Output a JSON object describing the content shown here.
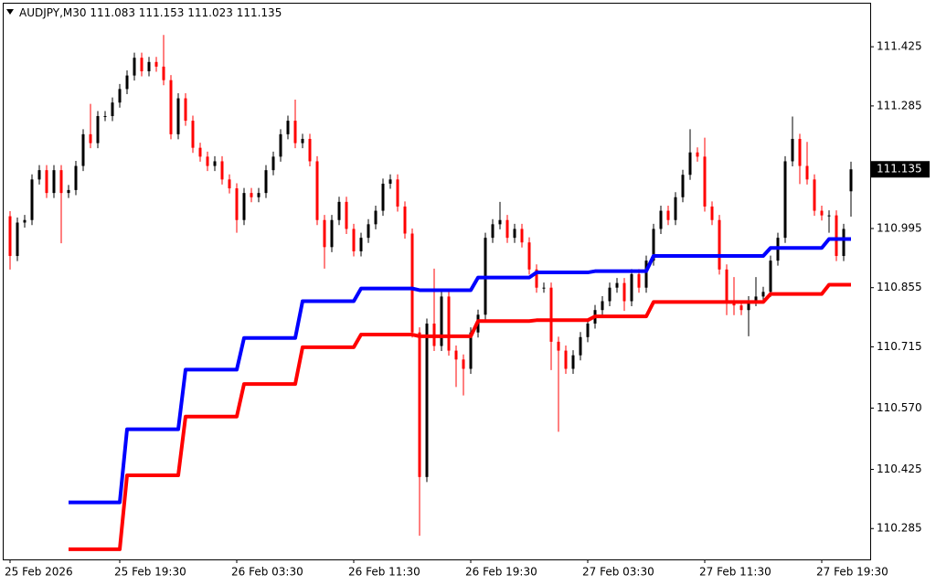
{
  "chart_data": {
    "type": "candlestick",
    "title": "AUDJPY,M30",
    "categories": [
      "25 Feb 2026",
      null,
      null,
      null,
      null,
      null,
      null,
      null,
      null,
      null,
      null,
      null,
      null,
      null,
      null,
      "25 Feb 19:30",
      null,
      null,
      null,
      null,
      null,
      null,
      null,
      null,
      null,
      null,
      null,
      null,
      null,
      null,
      null,
      "26 Feb 03:30",
      null,
      null,
      null,
      null,
      null,
      null,
      null,
      null,
      null,
      null,
      null,
      null,
      null,
      null,
      null,
      "26 Feb 11:30",
      null,
      null,
      null,
      null,
      null,
      null,
      null,
      null,
      null,
      null,
      null,
      null,
      null,
      null,
      null,
      "26 Feb 19:30",
      null,
      null,
      null,
      null,
      null,
      null,
      null,
      null,
      null,
      null,
      null,
      null,
      null,
      null,
      null,
      "27 Feb 03:30",
      null,
      null,
      null,
      null,
      null,
      null,
      null,
      null,
      null,
      null,
      null,
      null,
      null,
      null,
      null,
      "27 Feb 11:30",
      null,
      null,
      null,
      null,
      null,
      null,
      null,
      null,
      null,
      null,
      null,
      null,
      null,
      null,
      null,
      "27 Feb 19:30",
      null,
      null,
      null,
      null
    ],
    "open": [
      111.024,
      110.93,
      111.009,
      111.015,
      111.111,
      111.133,
      111.079,
      111.133,
      111.079,
      111.086,
      111.143,
      111.218,
      111.197,
      111.261,
      111.261,
      111.293,
      111.325,
      111.357,
      111.399,
      111.367,
      111.389,
      111.378,
      111.346,
      111.218,
      111.303,
      111.25,
      111.186,
      111.165,
      111.143,
      111.154,
      111.111,
      111.09,
      111.015,
      111.079,
      111.069,
      111.079,
      111.133,
      111.165,
      111.218,
      111.25,
      111.197,
      111.207,
      111.154,
      111.015,
      110.951,
      111.015,
      111.058,
      110.994,
      110.941,
      110.973,
      111.005,
      111.037,
      111.101,
      111.111,
      111.047,
      110.983,
      110.749,
      110.407,
      110.77,
      110.717,
      110.834,
      110.706,
      110.685,
      110.663,
      110.749,
      110.791,
      110.973,
      111.005,
      111.015,
      110.973,
      110.994,
      110.962,
      110.898,
      110.855,
      110.855,
      110.727,
      110.706,
      110.663,
      110.695,
      110.738,
      110.77,
      110.802,
      110.823,
      110.855,
      110.866,
      110.823,
      110.887,
      110.855,
      110.919,
      110.994,
      111.037,
      111.015,
      111.069,
      111.122,
      111.175,
      111.165,
      111.047,
      111.015,
      110.898,
      110.823,
      110.813,
      110.802,
      110.823,
      110.834,
      110.845,
      110.919,
      110.973,
      111.154,
      111.207,
      111.143,
      111.111,
      111.037,
      111.026,
      111.026,
      110.93,
      111.083
    ],
    "high": [
      111.036,
      111.021,
      111.027,
      111.123,
      111.145,
      111.145,
      111.145,
      111.145,
      111.098,
      111.155,
      111.23,
      111.29,
      111.273,
      111.273,
      111.305,
      111.337,
      111.369,
      111.411,
      111.411,
      111.401,
      111.401,
      111.453,
      111.358,
      111.315,
      111.315,
      111.262,
      111.198,
      111.177,
      111.166,
      111.166,
      111.123,
      111.102,
      111.091,
      111.091,
      111.091,
      111.145,
      111.177,
      111.23,
      111.262,
      111.3,
      111.219,
      111.219,
      111.166,
      111.027,
      111.027,
      111.07,
      111.07,
      111.006,
      110.985,
      111.017,
      111.049,
      111.113,
      111.123,
      111.123,
      111.059,
      110.995,
      110.761,
      110.782,
      110.9,
      110.846,
      110.846,
      110.718,
      110.697,
      110.761,
      110.803,
      110.985,
      111.017,
      111.058,
      111.027,
      111.006,
      111.006,
      110.974,
      110.91,
      110.867,
      110.867,
      110.739,
      110.718,
      110.707,
      110.75,
      110.782,
      110.814,
      110.835,
      110.867,
      110.878,
      110.878,
      110.899,
      110.899,
      110.931,
      111.006,
      111.049,
      111.049,
      111.081,
      111.134,
      111.23,
      111.187,
      111.21,
      111.059,
      111.027,
      110.91,
      110.88,
      110.825,
      110.835,
      110.88,
      110.857,
      110.931,
      110.985,
      111.166,
      111.26,
      111.219,
      111.2,
      111.123,
      111.049,
      111.038,
      111.038,
      111.006,
      111.153
    ],
    "low": [
      110.898,
      110.918,
      110.997,
      111.003,
      111.099,
      111.067,
      111.067,
      110.96,
      111.067,
      111.074,
      111.131,
      111.185,
      111.185,
      111.249,
      111.249,
      111.281,
      111.313,
      111.345,
      111.355,
      111.355,
      111.366,
      111.334,
      111.206,
      111.206,
      111.238,
      111.174,
      111.153,
      111.131,
      111.131,
      111.099,
      111.078,
      110.985,
      111.003,
      111.057,
      111.057,
      111.067,
      111.121,
      111.153,
      111.206,
      111.185,
      111.185,
      111.142,
      111.003,
      110.9,
      110.939,
      111.003,
      110.982,
      110.929,
      110.929,
      110.961,
      110.993,
      111.025,
      111.089,
      111.035,
      110.971,
      110.737,
      110.268,
      110.395,
      110.705,
      110.705,
      110.694,
      110.62,
      110.6,
      110.651,
      110.737,
      110.779,
      110.961,
      110.993,
      110.961,
      110.961,
      110.95,
      110.886,
      110.843,
      110.843,
      110.66,
      110.514,
      110.651,
      110.651,
      110.683,
      110.726,
      110.758,
      110.79,
      110.811,
      110.843,
      110.8,
      110.811,
      110.843,
      110.843,
      110.907,
      110.982,
      111.003,
      111.003,
      111.057,
      111.11,
      111.153,
      111.035,
      111.003,
      110.886,
      110.79,
      110.79,
      110.79,
      110.74,
      110.811,
      110.822,
      110.833,
      110.907,
      110.961,
      111.142,
      111.1,
      111.099,
      111.025,
      111.014,
      110.985,
      110.918,
      110.918,
      111.023
    ],
    "close": [
      110.93,
      111.009,
      111.015,
      111.111,
      111.133,
      111.079,
      111.133,
      111.079,
      111.086,
      111.143,
      111.218,
      111.197,
      111.261,
      111.261,
      111.293,
      111.325,
      111.357,
      111.399,
      111.367,
      111.389,
      111.378,
      111.346,
      111.218,
      111.303,
      111.25,
      111.186,
      111.165,
      111.143,
      111.154,
      111.111,
      111.09,
      111.015,
      111.079,
      111.069,
      111.079,
      111.133,
      111.165,
      111.218,
      111.25,
      111.197,
      111.207,
      111.154,
      111.015,
      110.951,
      111.015,
      111.058,
      110.994,
      110.941,
      110.973,
      111.005,
      111.037,
      111.101,
      111.111,
      111.047,
      110.983,
      110.749,
      110.407,
      110.77,
      110.717,
      110.834,
      110.706,
      110.685,
      110.663,
      110.749,
      110.791,
      110.973,
      111.005,
      111.015,
      110.973,
      110.994,
      110.962,
      110.898,
      110.855,
      110.855,
      110.727,
      110.706,
      110.663,
      110.695,
      110.738,
      110.77,
      110.802,
      110.823,
      110.855,
      110.866,
      110.823,
      110.887,
      110.855,
      110.919,
      110.994,
      111.037,
      111.015,
      111.069,
      111.122,
      111.175,
      111.165,
      111.047,
      111.015,
      110.898,
      110.823,
      110.813,
      110.802,
      110.823,
      110.834,
      110.845,
      110.919,
      110.973,
      111.154,
      111.207,
      111.143,
      111.111,
      111.037,
      111.026,
      111.026,
      110.93,
      110.994,
      111.135
    ],
    "up_color": "#000000",
    "down_color": "#ff0000",
    "series": [
      {
        "color": "#0000ff",
        "values": [
          null,
          null,
          null,
          null,
          null,
          null,
          null,
          null,
          110.347,
          110.347,
          110.347,
          110.347,
          110.347,
          110.347,
          110.347,
          110.347,
          110.52,
          110.52,
          110.52,
          110.52,
          110.52,
          110.52,
          110.52,
          110.52,
          110.661,
          110.661,
          110.661,
          110.661,
          110.661,
          110.661,
          110.661,
          110.661,
          110.736,
          110.736,
          110.736,
          110.736,
          110.736,
          110.736,
          110.736,
          110.736,
          110.823,
          110.823,
          110.823,
          110.823,
          110.823,
          110.823,
          110.823,
          110.823,
          110.853,
          110.853,
          110.853,
          110.853,
          110.853,
          110.853,
          110.853,
          110.853,
          110.849,
          110.849,
          110.849,
          110.849,
          110.849,
          110.849,
          110.849,
          110.849,
          110.879,
          110.879,
          110.879,
          110.879,
          110.879,
          110.879,
          110.879,
          110.879,
          110.891,
          110.891,
          110.891,
          110.891,
          110.891,
          110.891,
          110.891,
          110.891,
          110.894,
          110.894,
          110.894,
          110.894,
          110.894,
          110.894,
          110.894,
          110.894,
          110.93,
          110.93,
          110.93,
          110.93,
          110.93,
          110.93,
          110.93,
          110.93,
          110.93,
          110.93,
          110.93,
          110.93,
          110.93,
          110.93,
          110.93,
          110.93,
          110.949,
          110.949,
          110.949,
          110.949,
          110.949,
          110.949,
          110.949,
          110.949,
          110.97,
          110.97,
          110.97,
          110.97
        ]
      },
      {
        "color": "#ff0000",
        "values": [
          null,
          null,
          null,
          null,
          null,
          null,
          null,
          null,
          110.236,
          110.236,
          110.236,
          110.236,
          110.236,
          110.236,
          110.236,
          110.236,
          110.411,
          110.411,
          110.411,
          110.411,
          110.411,
          110.411,
          110.411,
          110.411,
          110.55,
          110.55,
          110.55,
          110.55,
          110.55,
          110.55,
          110.55,
          110.55,
          110.627,
          110.627,
          110.627,
          110.627,
          110.627,
          110.627,
          110.627,
          110.627,
          110.714,
          110.714,
          110.714,
          110.714,
          110.714,
          110.714,
          110.714,
          110.714,
          110.744,
          110.744,
          110.744,
          110.744,
          110.744,
          110.744,
          110.744,
          110.744,
          110.74,
          110.74,
          110.74,
          110.74,
          110.74,
          110.74,
          110.74,
          110.74,
          110.776,
          110.776,
          110.776,
          110.776,
          110.776,
          110.776,
          110.776,
          110.776,
          110.778,
          110.778,
          110.778,
          110.778,
          110.778,
          110.778,
          110.778,
          110.778,
          110.787,
          110.787,
          110.787,
          110.787,
          110.787,
          110.787,
          110.787,
          110.787,
          110.821,
          110.821,
          110.821,
          110.821,
          110.821,
          110.821,
          110.821,
          110.821,
          110.821,
          110.821,
          110.821,
          110.821,
          110.821,
          110.821,
          110.821,
          110.821,
          110.84,
          110.84,
          110.84,
          110.84,
          110.84,
          110.84,
          110.84,
          110.84,
          110.862,
          110.862,
          110.862,
          110.862
        ]
      }
    ],
    "ylim": [
      110.212,
      111.527
    ],
    "yticks": [
      111.425,
      111.285,
      110.995,
      110.855,
      110.715,
      {
        "value": 110.57,
        "label": "110.570"
      },
      110.425,
      110.285
    ],
    "grid": false
  }
}
